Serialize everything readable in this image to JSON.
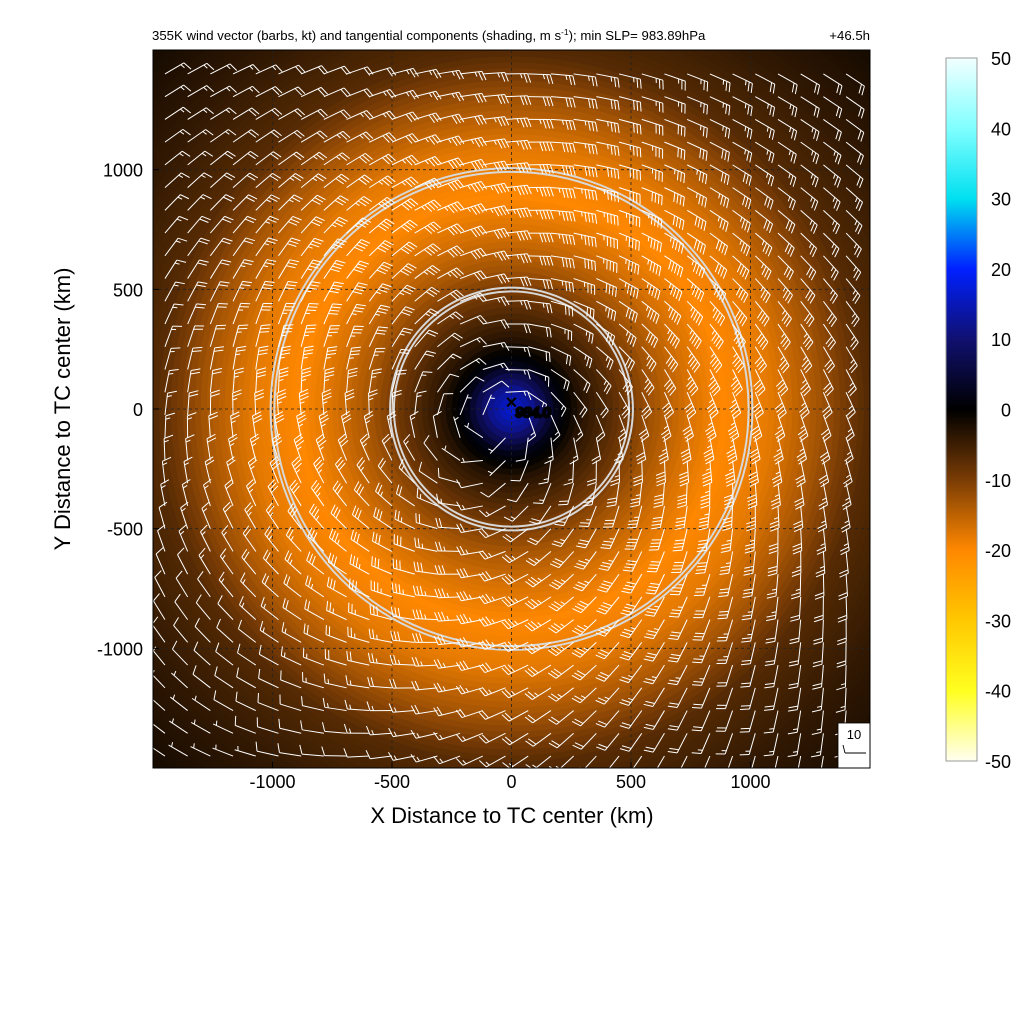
{
  "chart_data": {
    "type": "heatmap",
    "title": "355K wind vector (barbs, kt) and tangential components (shading, m s",
    "title_sup": "-1",
    "title_tail": "); min SLP= 983.89hPa",
    "time_label": "+46.5h",
    "xlabel": "X Distance to TC center (km)",
    "ylabel": "Y Distance to TC center (km)",
    "xlim": [
      -1500,
      1500
    ],
    "ylim": [
      -1500,
      1500
    ],
    "xticks": [
      -1000,
      -500,
      0,
      500,
      1000
    ],
    "yticks": [
      -1000,
      -500,
      0,
      500,
      1000
    ],
    "xtick_labels": [
      "-1000",
      "-500",
      "0",
      "500",
      "1000"
    ],
    "ytick_labels": [
      "-1000",
      "-500",
      "0",
      "500",
      "1000"
    ],
    "grid": "dashed",
    "center_marker": {
      "label": "984.0",
      "x": 0,
      "y": 0
    },
    "range_rings_km": [
      500,
      1000
    ],
    "colorbar": {
      "ticks": [
        50,
        40,
        30,
        20,
        10,
        0,
        -10,
        -20,
        -30,
        -40,
        -50
      ],
      "tick_labels": [
        "50",
        "40",
        "30",
        "20",
        "10",
        "0",
        "-10",
        "-20",
        "-30",
        "-40",
        "-50"
      ],
      "range": [
        -50,
        50
      ],
      "stops": [
        {
          "value": 50,
          "color": "#f2ffff"
        },
        {
          "value": 40,
          "color": "#80ffff"
        },
        {
          "value": 30,
          "color": "#00e0f0"
        },
        {
          "value": 20,
          "color": "#0020ff"
        },
        {
          "value": 10,
          "color": "#101070"
        },
        {
          "value": 0,
          "color": "#000000"
        },
        {
          "value": -10,
          "color": "#7a3c05"
        },
        {
          "value": -20,
          "color": "#ff8800"
        },
        {
          "value": -30,
          "color": "#ffc800"
        },
        {
          "value": -40,
          "color": "#ffff20"
        },
        {
          "value": -50,
          "color": "#fffff0"
        }
      ]
    },
    "shading_profile": {
      "description_units": "tangential wind m s-1 vs radius km",
      "radius_km": [
        0,
        100,
        200,
        300,
        450,
        600,
        750,
        900,
        1100,
        1300,
        1500,
        1800,
        2100
      ],
      "value": [
        18,
        12,
        2,
        -3,
        -8,
        -13,
        -17,
        -20,
        -18,
        -13,
        -7,
        -4,
        -2
      ]
    },
    "legend_barb": {
      "label": "10",
      "speed_kt": 10
    },
    "barb_field": {
      "units": "kt",
      "spacing_km": 95,
      "speed_profile_radius_km": [
        0,
        150,
        300,
        500,
        700,
        900,
        1100,
        1400,
        1800
      ],
      "speed_profile_kt": [
        8,
        10,
        12,
        22,
        35,
        40,
        32,
        20,
        14
      ],
      "background_flow_kt": [
        -6,
        4
      ]
    }
  }
}
